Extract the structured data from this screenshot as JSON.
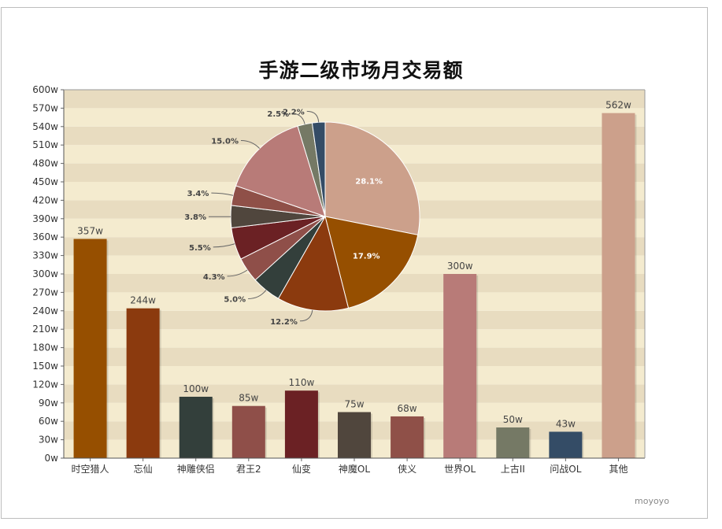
{
  "watermark": "moyoyo",
  "chart_data": [
    {
      "type": "bar",
      "title": "手游二级市场月交易额",
      "categories": [
        "时空猎人",
        "忘仙",
        "神雕侠侣",
        "君王2",
        "仙变",
        "神魔OL",
        "侠义",
        "世界OL",
        "上古II",
        "问战OL",
        "其他"
      ],
      "values": [
        357,
        244,
        100,
        85,
        110,
        75,
        68,
        300,
        50,
        43,
        562
      ],
      "value_labels": [
        "357w",
        "244w",
        "100w",
        "85w",
        "110w",
        "75w",
        "68w",
        "300w",
        "50w",
        "43w",
        "562w"
      ],
      "colors": [
        "#964f00",
        "#8b3a0e",
        "#333f3b",
        "#8f4f49",
        "#6b2124",
        "#50463d",
        "#8f5048",
        "#b87b78",
        "#757965",
        "#344c66",
        "#cca08b"
      ],
      "ylim": [
        0,
        600
      ],
      "yticks": [
        "0w",
        "30w",
        "60w",
        "90w",
        "120w",
        "150w",
        "180w",
        "210w",
        "240w",
        "270w",
        "300w",
        "330w",
        "360w",
        "390w",
        "420w",
        "450w",
        "480w",
        "510w",
        "540w",
        "570w",
        "600w"
      ],
      "grid": true
    },
    {
      "type": "pie",
      "slices": [
        {
          "label": "28.1%",
          "value": 28.1,
          "color": "#cca08b"
        },
        {
          "label": "17.9%",
          "value": 17.9,
          "color": "#964f00"
        },
        {
          "label": "12.2%",
          "value": 12.2,
          "color": "#8b3a0e"
        },
        {
          "label": "5.0%",
          "value": 5.0,
          "color": "#333f3b"
        },
        {
          "label": "4.3%",
          "value": 4.3,
          "color": "#8f4f49"
        },
        {
          "label": "5.5%",
          "value": 5.5,
          "color": "#6b2124"
        },
        {
          "label": "3.8%",
          "value": 3.8,
          "color": "#50463d"
        },
        {
          "label": "3.4%",
          "value": 3.4,
          "color": "#8f5048"
        },
        {
          "label": "15.0%",
          "value": 15.0,
          "color": "#b87b78"
        },
        {
          "label": "2.5%",
          "value": 2.5,
          "color": "#757965"
        },
        {
          "label": "2.2%",
          "value": 2.2,
          "color": "#344c66"
        }
      ]
    }
  ]
}
